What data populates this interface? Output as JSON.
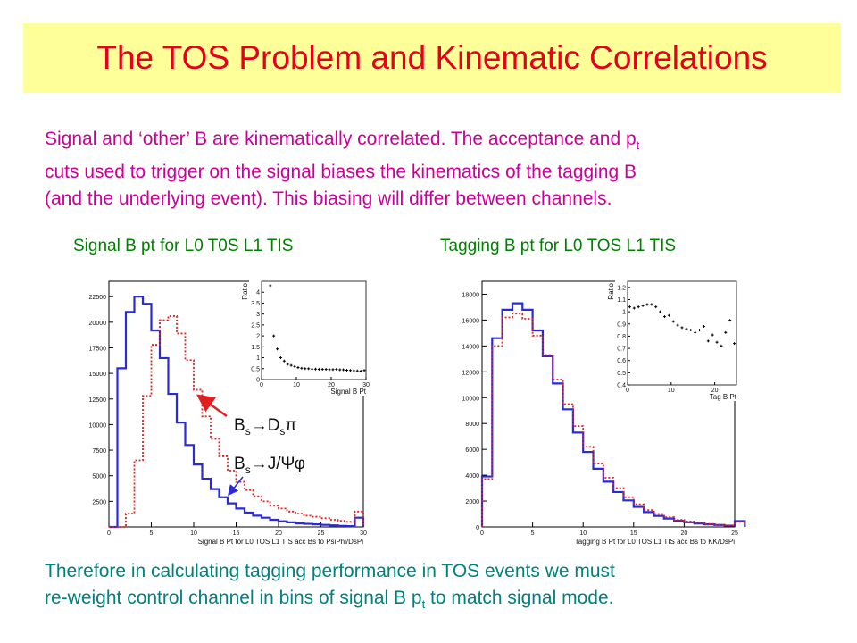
{
  "title": "The TOS Problem and Kinematic Correlations",
  "intro": {
    "line1_a": "Signal and ‘other’ B are kinematically correlated.  The acceptance and p",
    "line1_sub": "t",
    "line2": "cuts used to trigger on the signal biases the kinematics of the tagging B",
    "line3": "(and the underlying event).  This biasing will differ between channels."
  },
  "plot_labels": {
    "left": "Signal B pt for L0 T0S L1 TIS",
    "right": "Tagging B pt for L0 TOS L1 TIS"
  },
  "annotations": {
    "ds_pi": {
      "B": "B",
      "s1": "s",
      "arrow_D": "→D",
      "s2": "s",
      "pi": "π"
    },
    "jpsi_phi": {
      "B": "B",
      "s1": "s",
      "rest": "→J/Ψφ"
    }
  },
  "colors": {
    "blue": "#2a2ad6",
    "red": "#e02020",
    "black": "#000000"
  },
  "outro": {
    "line1": "Therefore in calculating tagging performance in TOS events we must",
    "line2_a": "re-weight control channel in bins of signal B p",
    "line2_sub": "t",
    "line2_b": " to match signal mode."
  },
  "chart_data": [
    {
      "type": "line",
      "xlabel": "Signal B Pt for L0 TOS L1 TIS acc Bs to PsiPhi/DsPi",
      "xlim": [
        0,
        30
      ],
      "ylim": [
        0,
        24000
      ],
      "xticks": [
        "0",
        "5",
        "10",
        "15",
        "20",
        "25",
        "30"
      ],
      "yticks": [
        "2500",
        "5000",
        "7500",
        "10000",
        "12500",
        "15000",
        "17500",
        "20000",
        "22500"
      ],
      "x": [
        0,
        1,
        2,
        3,
        4,
        5,
        6,
        7,
        8,
        9,
        10,
        11,
        12,
        13,
        14,
        15,
        16,
        17,
        18,
        19,
        20,
        21,
        22,
        23,
        24,
        25,
        26,
        27,
        28,
        29
      ],
      "series": [
        {
          "name": "Bs→J/Ψφ",
          "style": "solid",
          "color": "blue",
          "values": [
            0,
            15500,
            21000,
            22500,
            21800,
            19200,
            16500,
            13000,
            10200,
            8000,
            6100,
            4700,
            3700,
            2900,
            2300,
            1800,
            1400,
            1100,
            900,
            700,
            550,
            450,
            350,
            300,
            250,
            200,
            150,
            100,
            80,
            900
          ]
        },
        {
          "name": "Bs→Dsπ",
          "style": "dotted",
          "color": "red",
          "values": [
            0,
            0,
            1300,
            6500,
            12800,
            17800,
            20200,
            20600,
            18900,
            16300,
            13400,
            10800,
            8600,
            6900,
            5500,
            4400,
            3600,
            3000,
            2500,
            2100,
            1800,
            1500,
            1300,
            1100,
            1000,
            850,
            700,
            600,
            500,
            1500
          ]
        }
      ],
      "inset": {
        "type": "scatter",
        "xlabel": "Signal B Pt",
        "ylabel": "Ratio",
        "xlim": [
          0,
          30
        ],
        "ylim": [
          0,
          4.5
        ],
        "xticks": [
          "0",
          "10",
          "20",
          "30"
        ],
        "yticks": [
          "0",
          "0.5",
          "1",
          "1.5",
          "2",
          "2.5",
          "3",
          "3.5",
          "4"
        ],
        "x": [
          2.5,
          3.5,
          4.5,
          5.5,
          6.5,
          7.5,
          8.5,
          9.5,
          10.5,
          11.5,
          12.5,
          13.5,
          14.5,
          15.5,
          16.5,
          17.5,
          18.5,
          19.5,
          20.5,
          21.5,
          22.5,
          23.5,
          24.5,
          25.5,
          26.5,
          27.5,
          28.5,
          29.5
        ],
        "values": [
          4.3,
          2.0,
          1.4,
          1.0,
          0.85,
          0.7,
          0.65,
          0.6,
          0.55,
          0.52,
          0.5,
          0.5,
          0.48,
          0.48,
          0.47,
          0.47,
          0.47,
          0.46,
          0.46,
          0.47,
          0.45,
          0.45,
          0.43,
          0.42,
          0.41,
          0.4,
          0.39,
          0.42
        ]
      }
    },
    {
      "type": "line",
      "xlabel": "Tagging B Pt for L0 TOS L1 TIS acc Bs to KK/DsPi",
      "xlim": [
        0,
        25
      ],
      "ylim": [
        0,
        19000
      ],
      "xticks": [
        "0",
        "5",
        "10",
        "15",
        "20",
        "25"
      ],
      "yticks": [
        "0",
        "2000",
        "4000",
        "6000",
        "8000",
        "10000",
        "12000",
        "14000",
        "16000",
        "18000"
      ],
      "x": [
        0,
        1,
        2,
        3,
        4,
        5,
        6,
        7,
        8,
        9,
        10,
        11,
        12,
        13,
        14,
        15,
        16,
        17,
        18,
        19,
        20,
        21,
        22,
        23,
        24,
        25
      ],
      "series": [
        {
          "name": "Bs→KK",
          "style": "solid",
          "color": "blue",
          "values": [
            3900,
            14600,
            16800,
            17300,
            16800,
            15200,
            13200,
            11100,
            9100,
            7300,
            5800,
            4500,
            3500,
            2700,
            2050,
            1550,
            1150,
            850,
            650,
            480,
            360,
            270,
            200,
            150,
            100,
            450
          ]
        },
        {
          "name": "Bs→Dsπ",
          "style": "dotted",
          "color": "red",
          "values": [
            3700,
            14000,
            16200,
            16500,
            16100,
            14800,
            13300,
            11400,
            9500,
            7800,
            6200,
            4900,
            3800,
            3000,
            2300,
            1750,
            1300,
            1000,
            750,
            550,
            420,
            310,
            230,
            170,
            120,
            400
          ]
        }
      ],
      "inset": {
        "type": "scatter",
        "xlabel": "Tag B Pt",
        "ylabel": "Ratio",
        "xlim": [
          0,
          25
        ],
        "ylim": [
          0.4,
          1.25
        ],
        "xticks": [
          "0",
          "10",
          "20"
        ],
        "yticks": [
          "0.4",
          "0.5",
          "0.6",
          "0.7",
          "0.8",
          "0.9",
          "1",
          "1.1",
          "1.2"
        ],
        "x": [
          0.5,
          1.5,
          2.5,
          3.5,
          4.5,
          5.5,
          6.5,
          7.5,
          8.5,
          9.5,
          10.5,
          11.5,
          12.5,
          13.5,
          14.5,
          15.5,
          16.5,
          17.5,
          18.5,
          19.5,
          20.5,
          21.5,
          22.5,
          23.5,
          24.5
        ],
        "values": [
          1.04,
          1.03,
          1.04,
          1.05,
          1.06,
          1.06,
          1.04,
          1.0,
          0.96,
          0.97,
          0.92,
          0.89,
          0.87,
          0.86,
          0.85,
          0.83,
          0.85,
          0.88,
          0.76,
          0.81,
          0.75,
          0.72,
          0.83,
          0.93,
          0.74
        ]
      }
    }
  ]
}
